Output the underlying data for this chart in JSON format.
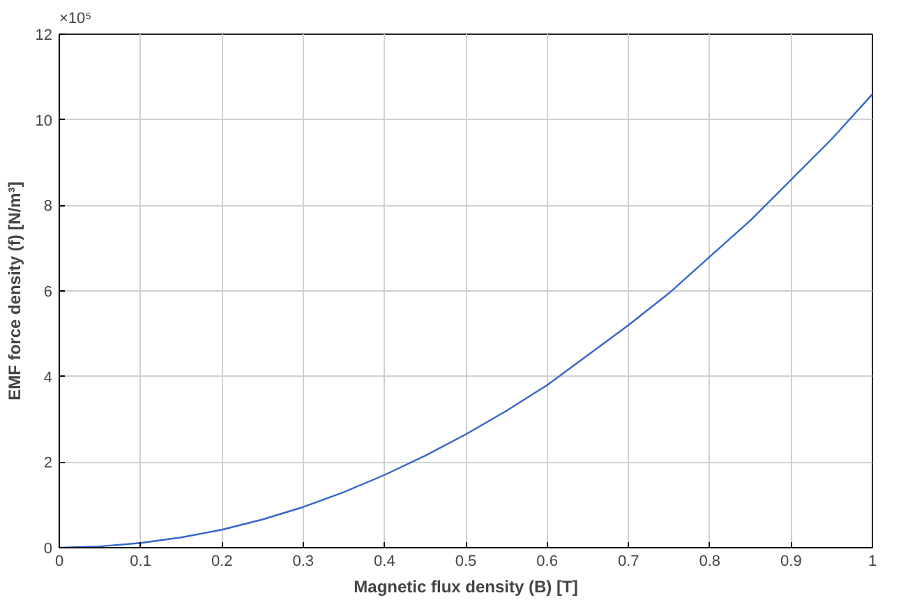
{
  "chart_data": {
    "type": "line",
    "xlabel": "Magnetic flux density (B) [T]",
    "ylabel": "EMF force density (f) [N/m³]",
    "annotations": [
      "×10⁵"
    ],
    "x": [
      0,
      0.05,
      0.1,
      0.15,
      0.2,
      0.25,
      0.3,
      0.35,
      0.4,
      0.45,
      0.5,
      0.55,
      0.6,
      0.65,
      0.7,
      0.75,
      0.8,
      0.85,
      0.9,
      0.95,
      1
    ],
    "series": [
      {
        "color": "#3366cc",
        "values": [
          0,
          0.03,
          0.11,
          0.24,
          0.42,
          0.66,
          0.95,
          1.3,
          1.7,
          2.15,
          2.65,
          3.2,
          3.8,
          4.5,
          5.2,
          5.95,
          6.8,
          7.65,
          8.6,
          9.55,
          10.6
        ]
      }
    ],
    "xlim": [
      0,
      1
    ],
    "ylim": [
      0,
      12
    ],
    "xticks": [
      0,
      0.1,
      0.2,
      0.3,
      0.4,
      0.5,
      0.6,
      0.7,
      0.8,
      0.9,
      1
    ],
    "yticks": [
      0,
      2,
      4,
      6,
      8,
      10,
      12
    ],
    "grid": true,
    "marker": "none",
    "line_style": "solid"
  }
}
